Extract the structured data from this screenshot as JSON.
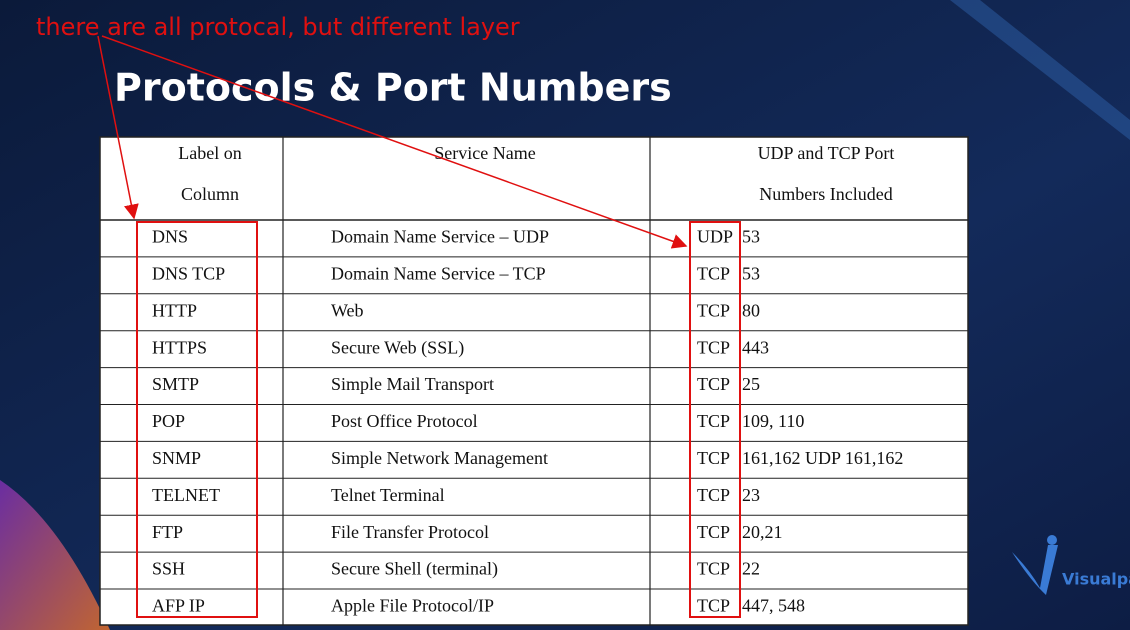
{
  "annotation": "there are all protocal, but different layer",
  "title": "Protocols & Port Numbers",
  "table": {
    "header": [
      [
        "Label on",
        "Column"
      ],
      [
        "Service Name"
      ],
      [
        "UDP and TCP Port",
        "Numbers Included"
      ]
    ],
    "rows": [
      [
        "DNS",
        "Domain Name Service – UDP",
        "UDP",
        "53"
      ],
      [
        "DNS TCP",
        "Domain Name Service – TCP",
        "TCP",
        "53"
      ],
      [
        "HTTP",
        "Web",
        "TCP",
        "80"
      ],
      [
        "HTTPS",
        "Secure Web (SSL)",
        "TCP",
        "443"
      ],
      [
        "SMTP",
        "Simple Mail Transport",
        "TCP",
        "25"
      ],
      [
        "POP",
        "Post Office Protocol",
        "TCP",
        "109, 110"
      ],
      [
        "SNMP",
        "Simple Network Management",
        "TCP",
        "161,162  UDP 161,162"
      ],
      [
        "TELNET",
        "Telnet Terminal",
        "TCP",
        "23"
      ],
      [
        "FTP",
        "File Transfer Protocol",
        "TCP",
        "20,21"
      ],
      [
        "SSH",
        "Secure Shell (terminal)",
        "TCP",
        "22"
      ],
      [
        "AFP IP",
        "Apple File Protocol/IP",
        "TCP",
        "447, 548"
      ]
    ]
  },
  "logo": "Visualpath"
}
